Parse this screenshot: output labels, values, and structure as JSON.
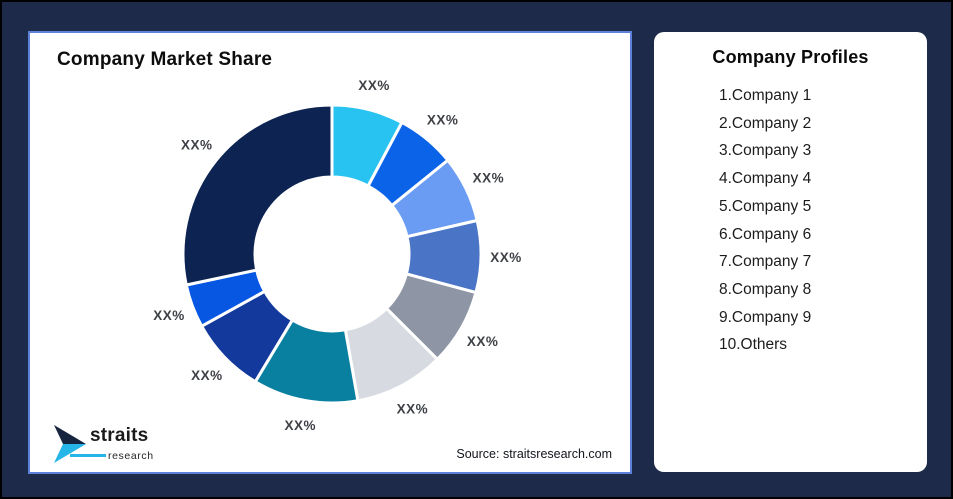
{
  "page": {
    "background_color": "#1D2A4A",
    "frame_border_color": "#000000"
  },
  "chart_card": {
    "title": "Company Market Share",
    "border_color": "#5B82D8",
    "source": "Source: straitsresearch.com",
    "logo": {
      "brand": "straits",
      "sub": "research",
      "navy": "#16243F",
      "cyan": "#25B5E8"
    }
  },
  "profiles_card": {
    "title": "Company Profiles",
    "items": [
      "1.Company 1",
      "2.Company 2",
      "3.Company 3",
      "4.Company 4",
      "5.Company 5",
      "6.Company 6",
      "7.Company 7",
      "8.Company 8",
      "9.Company 9",
      "10.Others"
    ]
  },
  "chart_data": {
    "type": "pie",
    "title": "Company Market Share",
    "donut": true,
    "start_angle_deg": 0,
    "clockwise": true,
    "inner_radius_ratio": 0.52,
    "gap_color": "#FFFFFF",
    "label_text_color": "#3E4146",
    "segments": [
      {
        "label": "XX%",
        "color": "#29C3F2",
        "angle_deg": 28,
        "share_pct_est": 7.8
      },
      {
        "label": "XX%",
        "color": "#0B63E8",
        "angle_deg": 23,
        "share_pct_est": 6.4
      },
      {
        "label": "XX%",
        "color": "#6B9CF3",
        "angle_deg": 26,
        "share_pct_est": 7.2
      },
      {
        "label": "XX%",
        "color": "#4A74C6",
        "angle_deg": 28,
        "share_pct_est": 7.8
      },
      {
        "label": "XX%",
        "color": "#8E96A5",
        "angle_deg": 30,
        "share_pct_est": 8.3
      },
      {
        "label": "XX%",
        "color": "#D7DAE0",
        "angle_deg": 35,
        "share_pct_est": 9.7
      },
      {
        "label": "XX%",
        "color": "#0A80A1",
        "angle_deg": 41,
        "share_pct_est": 11.4
      },
      {
        "label": "XX%",
        "color": "#12399B",
        "angle_deg": 30,
        "share_pct_est": 8.3
      },
      {
        "label": "XX%",
        "color": "#0757E2",
        "angle_deg": 17,
        "share_pct_est": 4.7
      },
      {
        "label": "XX%",
        "color": "#0D2453",
        "angle_deg": 102,
        "share_pct_est": 28.3
      }
    ]
  }
}
